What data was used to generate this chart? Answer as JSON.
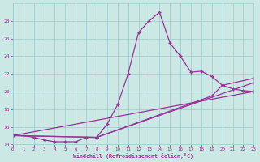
{
  "xlabel": "Windchill (Refroidissement éolien,°C)",
  "bg_color": "#cce8e4",
  "grid_color": "#99cccc",
  "line_color": "#993399",
  "ylim": [
    14,
    30
  ],
  "xlim": [
    0,
    23
  ],
  "yticks": [
    14,
    16,
    18,
    20,
    22,
    24,
    26,
    28
  ],
  "xticks": [
    0,
    1,
    2,
    3,
    4,
    5,
    6,
    7,
    8,
    9,
    10,
    11,
    12,
    13,
    14,
    15,
    16,
    17,
    18,
    19,
    20,
    21,
    22,
    23
  ],
  "curves": [
    {
      "x": [
        0,
        1,
        2,
        3,
        4,
        5,
        6,
        7,
        8,
        9,
        10,
        11,
        12,
        13,
        14,
        15,
        16,
        17,
        18,
        19,
        20,
        21,
        22,
        23
      ],
      "y": [
        15.0,
        15.0,
        14.8,
        14.5,
        14.3,
        14.3,
        14.3,
        14.8,
        14.8,
        16.3,
        18.5,
        22.0,
        26.7,
        28.0,
        29.0,
        25.5,
        24.0,
        22.2,
        22.3,
        21.7,
        20.7,
        20.3,
        20.1,
        20.0
      ]
    },
    {
      "x": [
        0,
        23
      ],
      "y": [
        15.0,
        20.0
      ]
    },
    {
      "x": [
        0,
        8,
        23
      ],
      "y": [
        15.0,
        14.8,
        21.0
      ]
    },
    {
      "x": [
        0,
        8,
        19,
        20,
        23
      ],
      "y": [
        15.0,
        14.8,
        19.5,
        20.7,
        21.5
      ]
    }
  ]
}
